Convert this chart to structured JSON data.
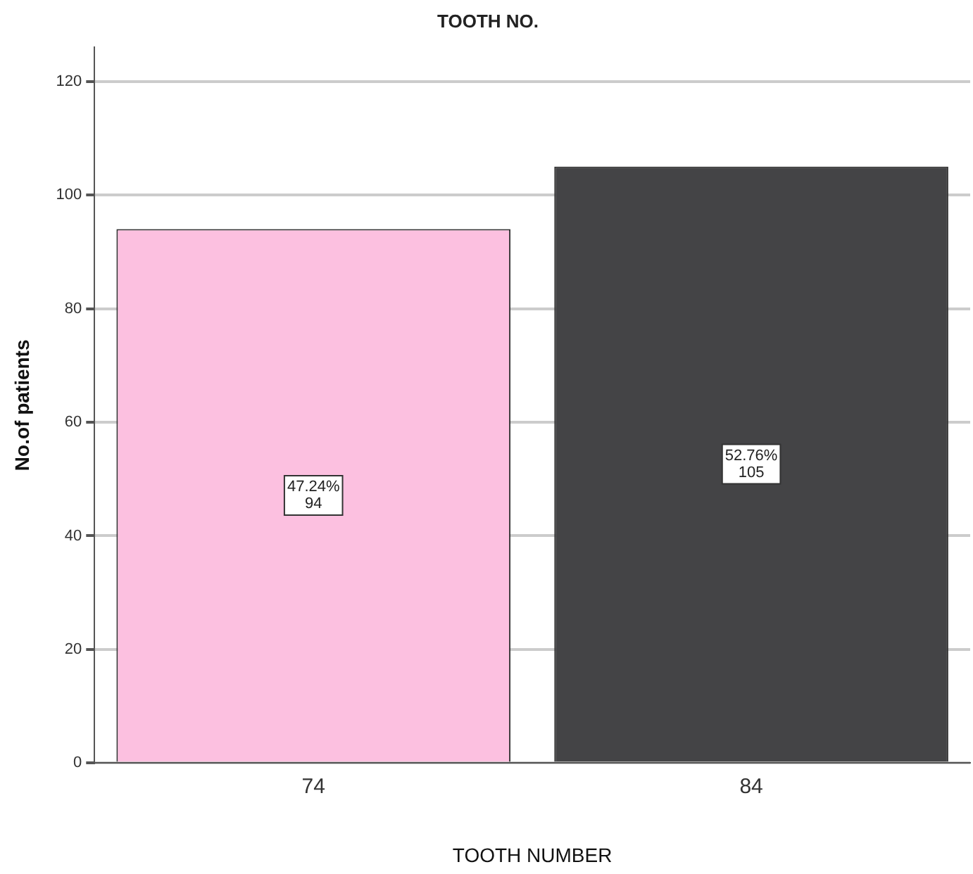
{
  "chart_data": {
    "type": "bar",
    "title": "TOOTH NO.",
    "xlabel": "TOOTH NUMBER",
    "ylabel": "No.of patients",
    "categories": [
      "74",
      "84"
    ],
    "values": [
      94,
      105
    ],
    "colors": [
      "#fcc0e0",
      "#444446"
    ],
    "value_labels": [
      "47.24%\n94",
      "52.76%\n105"
    ],
    "ylim": [
      0,
      126
    ],
    "yticks": [
      0,
      20,
      40,
      60,
      80,
      100,
      120
    ],
    "grid": "y",
    "legend": false
  }
}
